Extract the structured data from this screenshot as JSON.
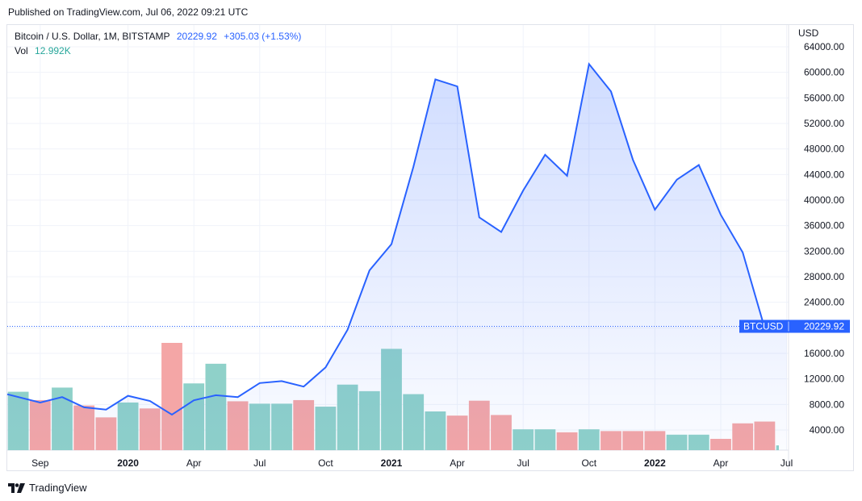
{
  "header": {
    "published": "Published on TradingView.com, Jul 06, 2022 09:21 UTC"
  },
  "legend": {
    "symbol": "Bitcoin / U.S. Dollar, 1M, BITSTAMP",
    "last": "20229.92",
    "change": "+305.03 (+1.53%)",
    "vol_label": "Vol",
    "vol_value": "12.992K"
  },
  "axis": {
    "currency": "USD"
  },
  "price_tag": {
    "symbol": "BTCUSD",
    "value": "20229.92"
  },
  "footer": {
    "brand": "TradingView"
  },
  "colors": {
    "line": "#2962ff",
    "volume_up": "#8fd1c9",
    "volume_down": "#f4a6a6",
    "grid": "#f0f3fa",
    "tag": "#2962ff"
  },
  "chart_data": {
    "type": "area",
    "y_ticks": [
      "4000.00",
      "8000.00",
      "12000.00",
      "16000.00",
      "20000.00",
      "24000.00",
      "28000.00",
      "32000.00",
      "36000.00",
      "40000.00",
      "44000.00",
      "48000.00",
      "52000.00",
      "56000.00",
      "60000.00",
      "64000.00"
    ],
    "x_ticks": [
      {
        "label": "Sep",
        "index": 1,
        "bold": false
      },
      {
        "label": "2020",
        "index": 5,
        "bold": true
      },
      {
        "label": "Apr",
        "index": 8,
        "bold": false
      },
      {
        "label": "Jul",
        "index": 11,
        "bold": false
      },
      {
        "label": "Oct",
        "index": 14,
        "bold": false
      },
      {
        "label": "2021",
        "index": 17,
        "bold": true
      },
      {
        "label": "Apr",
        "index": 20,
        "bold": false
      },
      {
        "label": "Jul",
        "index": 23,
        "bold": false
      },
      {
        "label": "Oct",
        "index": 26,
        "bold": false
      },
      {
        "label": "2022",
        "index": 29,
        "bold": true
      },
      {
        "label": "Apr",
        "index": 32,
        "bold": false
      },
      {
        "label": "Jul",
        "index": 35,
        "bold": false
      }
    ],
    "months": [
      "2019-08",
      "2019-09",
      "2019-10",
      "2019-11",
      "2019-12",
      "2020-01",
      "2020-02",
      "2020-03",
      "2020-04",
      "2020-05",
      "2020-06",
      "2020-07",
      "2020-08",
      "2020-09",
      "2020-10",
      "2020-11",
      "2020-12",
      "2021-01",
      "2021-02",
      "2021-03",
      "2021-04",
      "2021-05",
      "2021-06",
      "2021-07",
      "2021-08",
      "2021-09",
      "2021-10",
      "2021-11",
      "2021-12",
      "2022-01",
      "2022-02",
      "2022-03",
      "2022-04",
      "2022-05",
      "2022-06",
      "2022-07"
    ],
    "close": [
      9600,
      8300,
      9150,
      7550,
      7200,
      9350,
      8550,
      6400,
      8650,
      9450,
      9150,
      11350,
      11650,
      10800,
      13800,
      19700,
      29000,
      33100,
      45200,
      58900,
      57800,
      37300,
      35000,
      41500,
      47100,
      43800,
      61300,
      57000,
      46300,
      38500,
      43200,
      45500,
      37700,
      31800,
      19950,
      20229.92
    ],
    "volume": [
      9800,
      8400,
      10500,
      7500,
      5500,
      8000,
      7000,
      18000,
      11200,
      14500,
      8200,
      7800,
      7800,
      8400,
      7300,
      11000,
      9900,
      17000,
      9400,
      6500,
      5800,
      8300,
      5900,
      3500,
      3500,
      3000,
      3500,
      3200,
      3200,
      3200,
      2600,
      2600,
      1900,
      4500,
      4800,
      800
    ],
    "volume_up": [
      true,
      false,
      true,
      false,
      false,
      true,
      false,
      false,
      true,
      true,
      false,
      true,
      true,
      false,
      true,
      true,
      true,
      true,
      true,
      true,
      false,
      false,
      false,
      true,
      true,
      false,
      true,
      false,
      false,
      false,
      true,
      true,
      false,
      false,
      false,
      true
    ]
  }
}
